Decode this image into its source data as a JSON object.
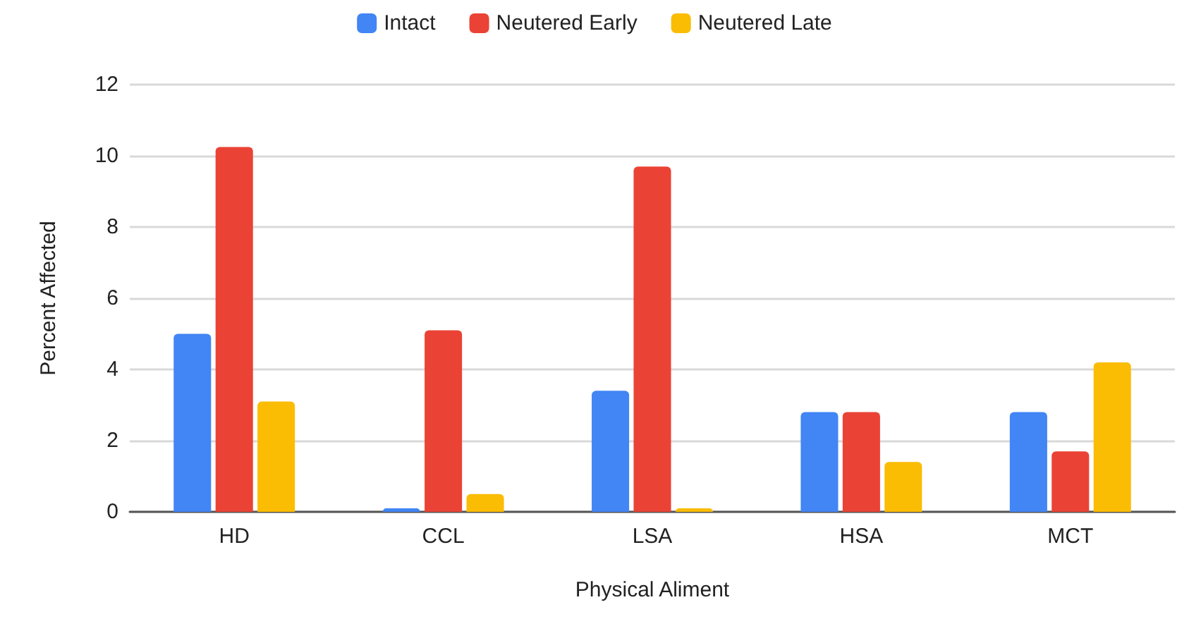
{
  "chart_data": {
    "type": "bar",
    "xlabel": "Physical Aliment",
    "ylabel": "Percent Affected",
    "categories": [
      "HD",
      "CCL",
      "LSA",
      "HSA",
      "MCT"
    ],
    "series": [
      {
        "name": "Intact",
        "color": "#4285f4",
        "values": [
          5.0,
          0.1,
          3.4,
          2.8,
          2.8
        ]
      },
      {
        "name": "Neutered Early",
        "color": "#ea4335",
        "values": [
          10.25,
          5.1,
          9.7,
          2.8,
          1.7
        ]
      },
      {
        "name": "Neutered Late",
        "color": "#fbbc04",
        "values": [
          3.1,
          0.5,
          0.1,
          1.4,
          4.2
        ]
      }
    ],
    "ylim": [
      0,
      12
    ],
    "yticks": [
      0,
      2,
      4,
      6,
      8,
      10,
      12
    ],
    "grid": "y",
    "legend": "top"
  }
}
